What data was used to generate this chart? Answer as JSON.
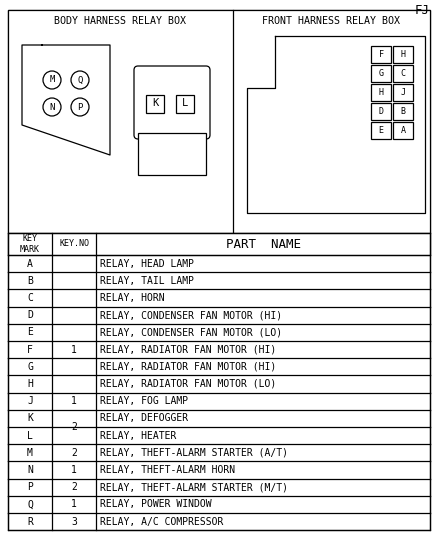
{
  "title_right": "FJ",
  "header_left": "BODY HARNESS RELAY BOX",
  "header_right": "FRONT HARNESS RELAY BOX",
  "bg_color": "#ffffff",
  "border_color": "#000000",
  "font_size": 7.0,
  "rows": [
    {
      "mark": "A",
      "key_no": "",
      "part": "RELAY, HEAD LAMP"
    },
    {
      "mark": "B",
      "key_no": "",
      "part": "RELAY, TAIL LAMP"
    },
    {
      "mark": "C",
      "key_no": "",
      "part": "RELAY, HORN"
    },
    {
      "mark": "D",
      "key_no": "1",
      "part": "RELAY, CONDENSER FAN MOTOR (HI)"
    },
    {
      "mark": "E",
      "key_no": "",
      "part": "RELAY, CONDENSER FAN MOTOR (LO)"
    },
    {
      "mark": "F",
      "key_no": "",
      "part": "RELAY, RADIATOR FAN MOTOR (HI)"
    },
    {
      "mark": "G",
      "key_no": "",
      "part": "RELAY, RADIATOR FAN MOTOR (HI)"
    },
    {
      "mark": "H",
      "key_no": "",
      "part": "RELAY, RADIATOR FAN MOTOR (LO)"
    },
    {
      "mark": "J",
      "key_no": "1",
      "part": "RELAY, FOG LAMP"
    },
    {
      "mark": "K",
      "key_no": "",
      "part": "RELAY, DEFOGGER"
    },
    {
      "mark": "L",
      "key_no": "2",
      "part": "RELAY, HEATER"
    },
    {
      "mark": "M",
      "key_no": "2",
      "part": "RELAY, THEFT-ALARM STARTER (A/T)"
    },
    {
      "mark": "N",
      "key_no": "1",
      "part": "RELAY, THEFT-ALARM HORN"
    },
    {
      "mark": "P",
      "key_no": "2",
      "part": "RELAY, THEFT-ALARM STARTER (M/T)"
    },
    {
      "mark": "Q",
      "key_no": "1",
      "part": "RELAY, POWER WINDOW"
    },
    {
      "mark": "R",
      "key_no": "3",
      "part": "RELAY, A/C COMPRESSOR"
    }
  ],
  "span_entries": [
    [
      3,
      7,
      "1"
    ],
    [
      9,
      10,
      "2"
    ]
  ],
  "single_entries": [
    [
      8,
      "1"
    ],
    [
      11,
      "2"
    ],
    [
      12,
      "1"
    ],
    [
      13,
      "2"
    ],
    [
      14,
      "1"
    ],
    [
      15,
      "3"
    ]
  ],
  "front_relay_labels": [
    [
      "F",
      "H"
    ],
    [
      "G",
      "C"
    ],
    [
      "H",
      "J"
    ],
    [
      "D",
      "B"
    ],
    [
      "E",
      "A"
    ]
  ]
}
